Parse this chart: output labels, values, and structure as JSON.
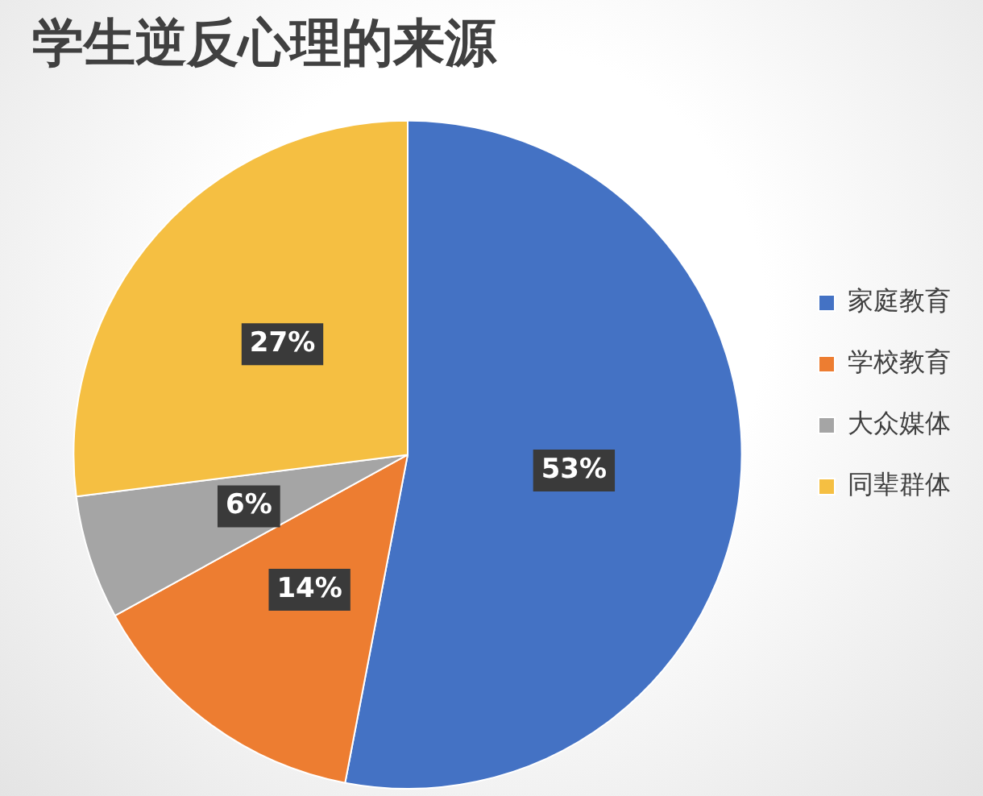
{
  "chart_data": {
    "type": "pie",
    "title": "学生逆反心理的来源",
    "categories": [
      "家庭教育",
      "学校教育",
      "大众媒体",
      "同辈群体"
    ],
    "values": [
      53,
      14,
      6,
      27
    ],
    "value_labels": [
      "53%",
      "14%",
      "6%",
      "27%"
    ],
    "colors": [
      "#4472c4",
      "#ed7d31",
      "#a5a5a5",
      "#f5bf42"
    ],
    "legend": "right"
  }
}
